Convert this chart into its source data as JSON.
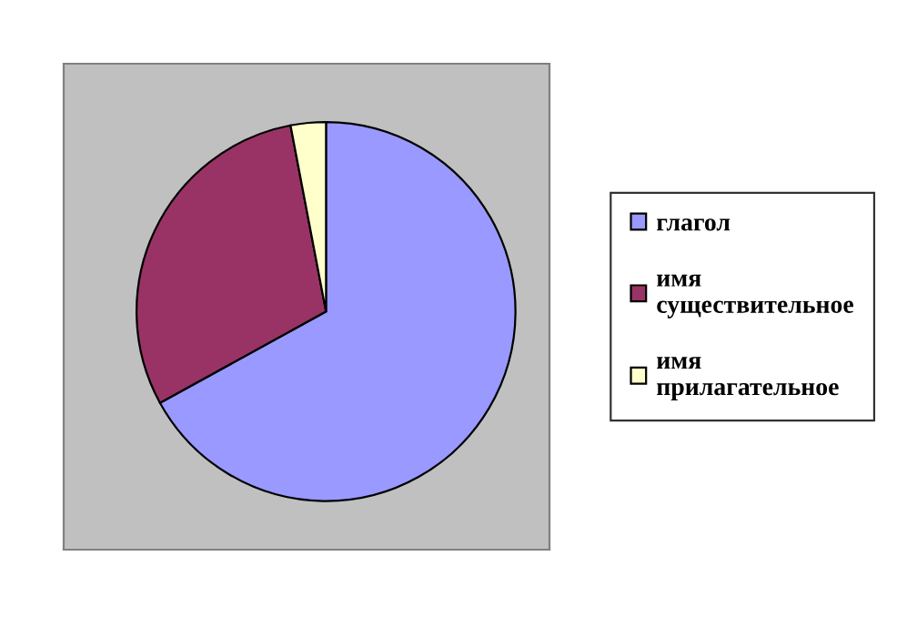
{
  "chart_data": {
    "type": "pie",
    "categories": [
      "глагол",
      "имя существительное",
      "имя прилагательное"
    ],
    "values": [
      67,
      30,
      3
    ],
    "colors": [
      "#9999ff",
      "#993366",
      "#ffffcc"
    ],
    "legend": "right"
  }
}
